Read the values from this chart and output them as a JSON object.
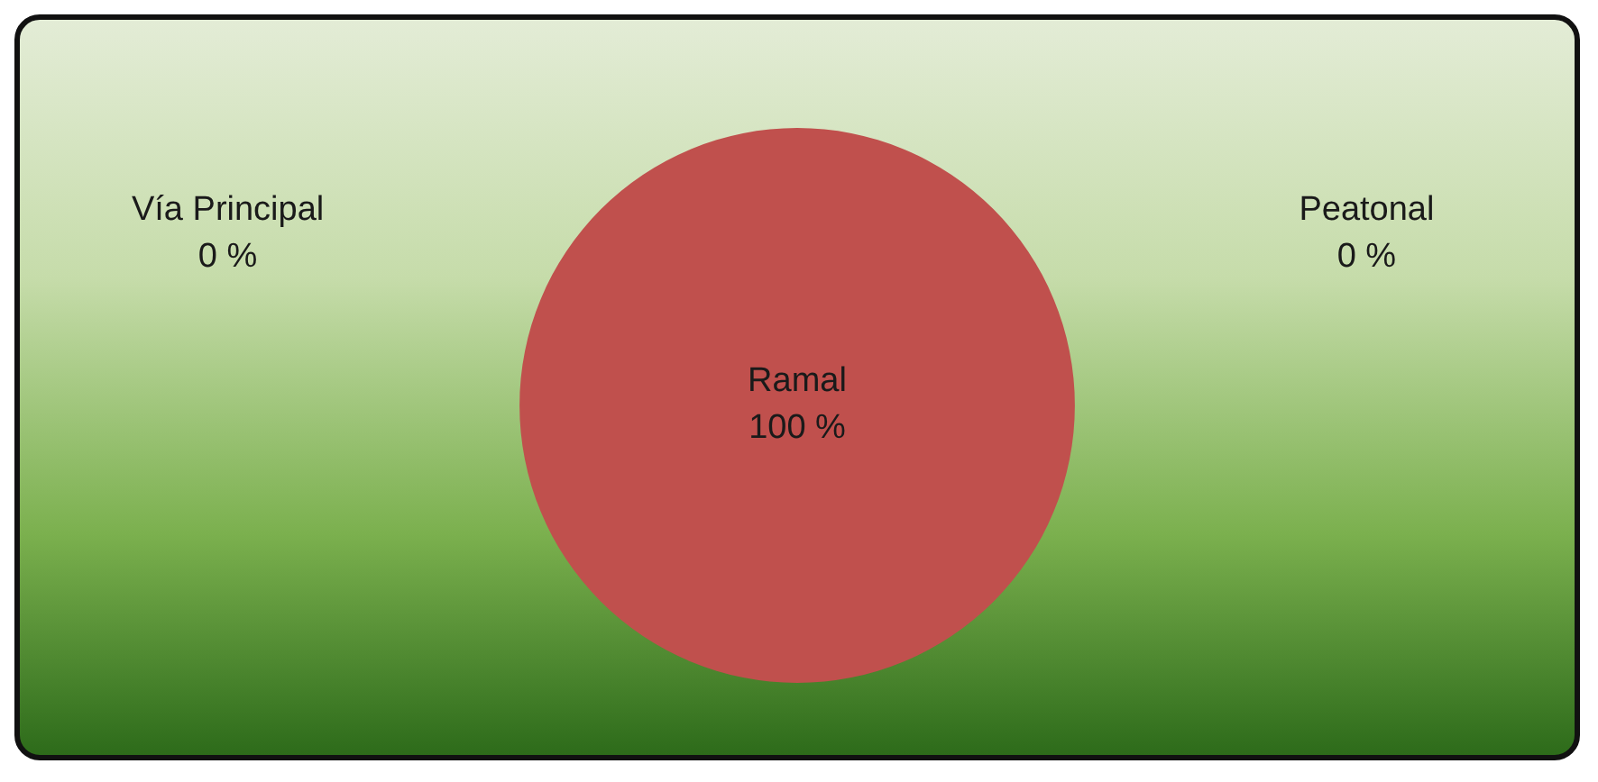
{
  "chart_data": {
    "type": "pie",
    "categories": [
      "Vía Principal",
      "Ramal",
      "Peatonal"
    ],
    "values": [
      0,
      100,
      0
    ],
    "colors": [
      "#4f81bd",
      "#c0504d",
      "#9bbb59"
    ],
    "value_labels": [
      "0 %",
      "100 %",
      "0 %"
    ],
    "legend": false
  }
}
